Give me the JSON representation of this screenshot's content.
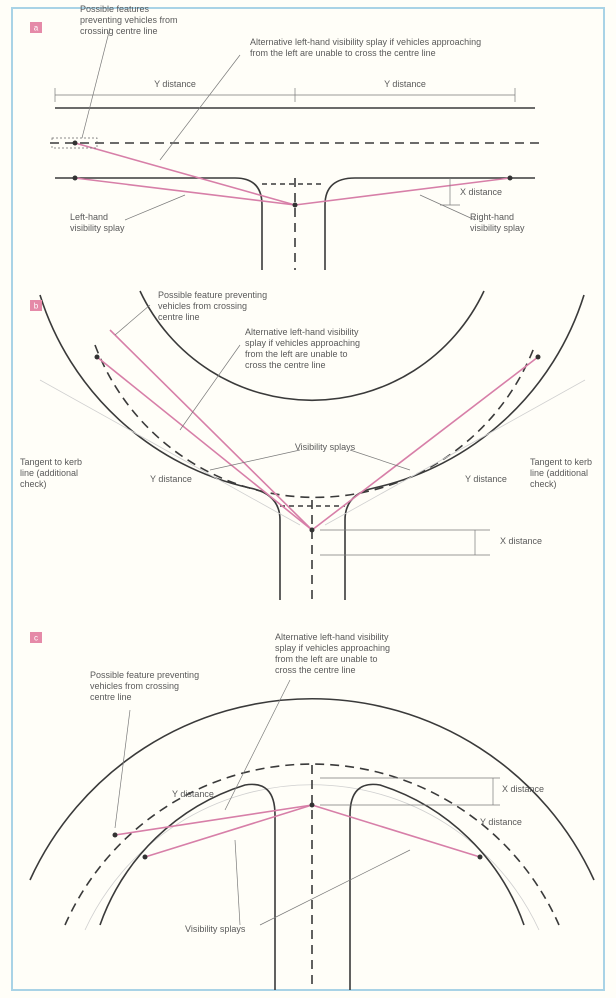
{
  "panels": [
    {
      "tag": "a",
      "labels": [
        [
          "Possible features",
          "preventing vehicles from",
          "crossing centre line"
        ],
        [
          "Alternative left-hand visibility splay if vehicles approaching",
          "from the left are unable to cross the centre line"
        ],
        [
          "Y distance"
        ],
        [
          "Y distance"
        ],
        [
          "X distance"
        ],
        [
          "Left-hand",
          "visibility splay"
        ],
        [
          "Right-hand",
          "visibility splay"
        ]
      ]
    },
    {
      "tag": "b",
      "labels": [
        [
          "Possible feature preventing",
          "vehicles from crossing",
          "centre line"
        ],
        [
          "Alternative left-hand visibility",
          "splay if vehicles approaching",
          "from the left are unable to",
          "cross the centre line"
        ],
        [
          "Visibility splays"
        ],
        [
          "Tangent to kerb",
          "line (additional",
          "check)"
        ],
        [
          "Tangent to kerb",
          "line (additional",
          "check)"
        ],
        [
          "Y distance"
        ],
        [
          "Y distance"
        ],
        [
          "X distance"
        ]
      ]
    },
    {
      "tag": "c",
      "labels": [
        [
          "Alternative left-hand visibility",
          "splay if vehicles approaching",
          "from the left are unable to",
          "cross the centre line"
        ],
        [
          "Possible feature preventing",
          "vehicles from crossing",
          "centre line"
        ],
        [
          "X distance"
        ],
        [
          "Y distance"
        ],
        [
          "Y distance"
        ],
        [
          "Visibility splays"
        ]
      ]
    }
  ]
}
